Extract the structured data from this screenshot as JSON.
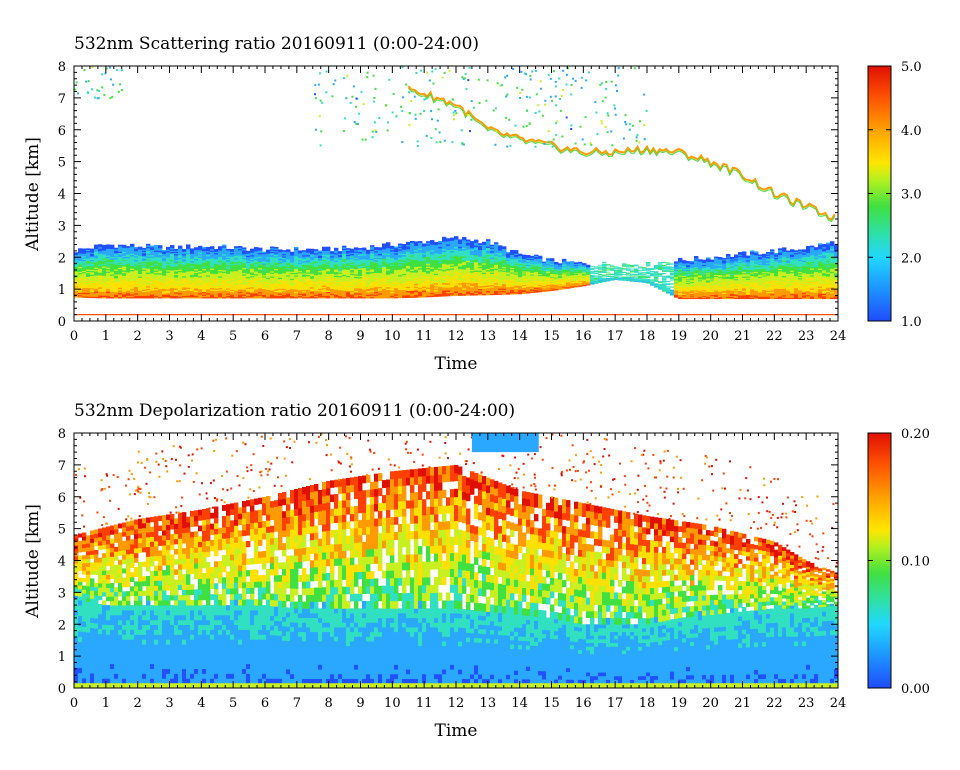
{
  "chart_data": [
    {
      "type": "heatmap",
      "title": "532nm Scattering ratio  20160911 (0:00-24:00)",
      "xlabel": "Time",
      "ylabel": "Altitude [km]",
      "xlim": [
        0,
        24
      ],
      "ylim": [
        0,
        8
      ],
      "x_ticks": [
        "0",
        "1",
        "2",
        "3",
        "4",
        "5",
        "6",
        "7",
        "8",
        "9",
        "10",
        "11",
        "12",
        "13",
        "14",
        "15",
        "16",
        "17",
        "18",
        "19",
        "20",
        "21",
        "22",
        "23",
        "24"
      ],
      "y_ticks": [
        "0",
        "1",
        "2",
        "3",
        "4",
        "5",
        "6",
        "7",
        "8"
      ],
      "colorbar": {
        "range": [
          1.0,
          5.0
        ],
        "ticks": [
          "1.0",
          "2.0",
          "3.0",
          "4.0",
          "5.0"
        ]
      },
      "colormap": [
        "#2050ff",
        "#2aa8ff",
        "#30e0c0",
        "#40e040",
        "#c8f020",
        "#ffe000",
        "#ff9a00",
        "#ff4000",
        "#e01000"
      ],
      "features": {
        "boundary_layer": {
          "x": [
            0,
            1,
            2,
            3,
            4,
            5,
            6,
            7,
            8,
            9,
            10,
            11,
            12,
            13,
            14,
            15,
            16,
            17,
            18,
            19,
            20,
            21,
            22,
            23,
            24
          ],
          "bottom_km": [
            0.75,
            0.72,
            0.72,
            0.72,
            0.72,
            0.72,
            0.72,
            0.72,
            0.72,
            0.72,
            0.72,
            0.75,
            0.8,
            0.82,
            0.85,
            0.95,
            1.1,
            1.3,
            1.2,
            0.7,
            0.7,
            0.7,
            0.7,
            0.7,
            0.7
          ],
          "top_km": [
            2.2,
            2.4,
            2.35,
            2.3,
            2.35,
            2.3,
            2.25,
            2.25,
            2.25,
            2.3,
            2.4,
            2.5,
            2.6,
            2.5,
            2.1,
            1.9,
            1.8,
            1.8,
            1.8,
            1.9,
            2.0,
            2.1,
            2.2,
            2.3,
            2.5
          ]
        },
        "cirrus_base_km": {
          "x": [
            10.5,
            12,
            13,
            14,
            15,
            16,
            17,
            18,
            19,
            20,
            21,
            22,
            23,
            24
          ],
          "y": [
            7.3,
            6.8,
            6.0,
            5.7,
            5.5,
            5.3,
            5.3,
            5.4,
            5.3,
            5.0,
            4.6,
            4.0,
            3.6,
            3.2
          ]
        },
        "surface_line_km": 0.2
      }
    },
    {
      "type": "heatmap",
      "title": "532nm Depolarization ratio  20160911 (0:00-24:00)",
      "xlabel": "Time",
      "ylabel": "Altitude [km]",
      "xlim": [
        0,
        24
      ],
      "ylim": [
        0,
        8
      ],
      "x_ticks": [
        "0",
        "1",
        "2",
        "3",
        "4",
        "5",
        "6",
        "7",
        "8",
        "9",
        "10",
        "11",
        "12",
        "13",
        "14",
        "15",
        "16",
        "17",
        "18",
        "19",
        "20",
        "21",
        "22",
        "23",
        "24"
      ],
      "y_ticks": [
        "0",
        "1",
        "2",
        "3",
        "4",
        "5",
        "6",
        "7",
        "8"
      ],
      "colorbar": {
        "range": [
          0.0,
          0.2
        ],
        "ticks": [
          "0.00",
          "0.10",
          "0.20"
        ]
      },
      "colormap": [
        "#2050ff",
        "#2aa8ff",
        "#30e0c0",
        "#40e040",
        "#c8f020",
        "#ffe000",
        "#ff9a00",
        "#ff4000",
        "#e01000"
      ],
      "features": {
        "low_depol_layer_top_km": {
          "x": [
            0,
            1,
            2,
            3,
            4,
            5,
            6,
            7,
            8,
            9,
            10,
            11,
            12,
            13,
            14,
            15,
            16,
            17,
            18,
            19,
            20,
            21,
            22,
            23,
            24
          ],
          "y": [
            2.8,
            2.6,
            2.6,
            2.6,
            2.6,
            2.6,
            2.6,
            2.5,
            2.5,
            2.5,
            2.5,
            2.5,
            2.5,
            2.4,
            2.3,
            2.2,
            2.0,
            2.0,
            2.0,
            2.2,
            2.3,
            2.4,
            2.5,
            2.5,
            2.6
          ]
        },
        "aerosol_top_km": {
          "x": [
            0,
            2,
            4,
            6,
            8,
            10,
            12,
            14,
            16,
            18,
            20,
            22,
            23,
            24
          ],
          "y": [
            4.8,
            5.3,
            5.6,
            6.0,
            6.5,
            6.8,
            7.0,
            6.2,
            5.8,
            5.4,
            5.1,
            4.6,
            4.0,
            3.6
          ]
        }
      }
    }
  ]
}
